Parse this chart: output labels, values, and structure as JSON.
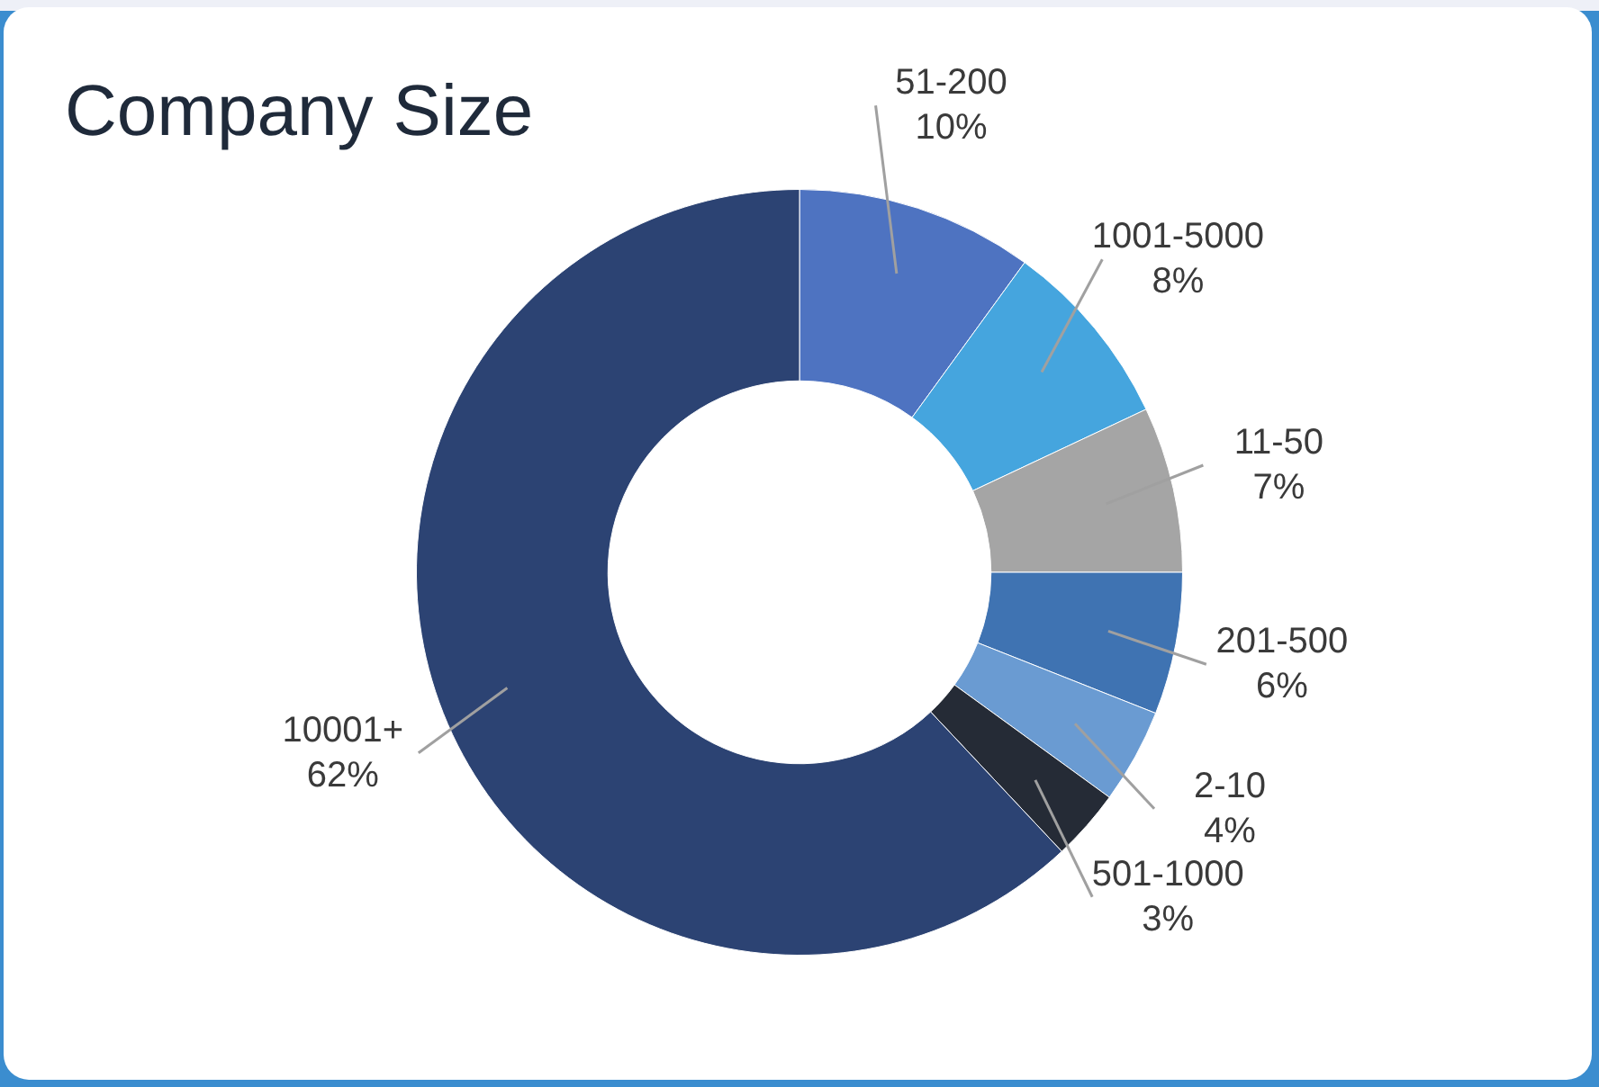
{
  "chart_data": {
    "type": "donut",
    "title": "Company Size",
    "categories": [
      "51-200",
      "1001-5000",
      "11-50",
      "201-500",
      "2-10",
      "501-1000",
      "10001+"
    ],
    "values": [
      10,
      8,
      7,
      6,
      4,
      3,
      62
    ],
    "value_labels": [
      "10%",
      "8%",
      "7%",
      "6%",
      "4%",
      "3%",
      "62%"
    ],
    "colors": [
      "#4e73c1",
      "#45a5de",
      "#a5a5a5",
      "#3f73b2",
      "#6a9bd2",
      "#252b36",
      "#2c4373"
    ],
    "legend": false
  }
}
